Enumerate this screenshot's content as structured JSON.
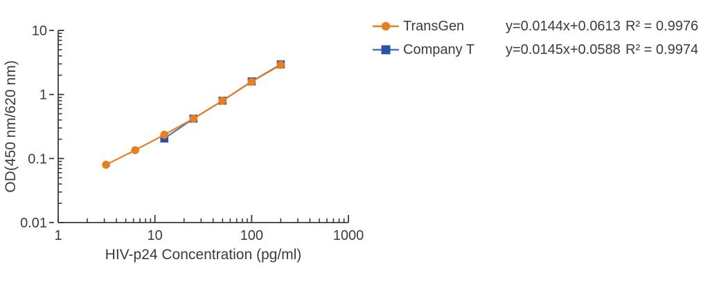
{
  "chart_data": {
    "type": "line",
    "x_scale": "log",
    "y_scale": "log",
    "xlabel": "HIV-p24 Concentration (pg/ml)",
    "ylabel": "OD(450 nm/620 nm)",
    "xlim": [
      1,
      1000
    ],
    "ylim": [
      0.01,
      10
    ],
    "x_ticks": [
      1,
      10,
      100,
      1000
    ],
    "x_tick_labels": [
      "1",
      "10",
      "100",
      "1000"
    ],
    "y_ticks": [
      0.01,
      0.1,
      1,
      10
    ],
    "y_tick_labels": [
      "0.01",
      "0.1",
      "1",
      "10"
    ],
    "grid": false,
    "legend_position": "top-right",
    "axis_color": "#3b3838",
    "text_color": "#3b3b3b",
    "series": [
      {
        "name": "TransGen",
        "marker": "circle",
        "color": "#e87e22",
        "x": [
          3.125,
          6.25,
          12.5,
          25,
          50,
          100,
          200
        ],
        "y": [
          0.08,
          0.135,
          0.235,
          0.42,
          0.8,
          1.58,
          2.9
        ],
        "equation": "y=0.0144x+0.0613",
        "r_squared": "R² = 0.9976"
      },
      {
        "name": "Company T",
        "marker": "square",
        "color": "#2b52a3",
        "line_color": "#4a73bb",
        "x": [
          12.5,
          25,
          50,
          100,
          200
        ],
        "y": [
          0.205,
          0.42,
          0.8,
          1.6,
          2.95
        ],
        "equation": "y=0.0145x+0.0588",
        "r_squared": "R² = 0.9974"
      }
    ]
  }
}
